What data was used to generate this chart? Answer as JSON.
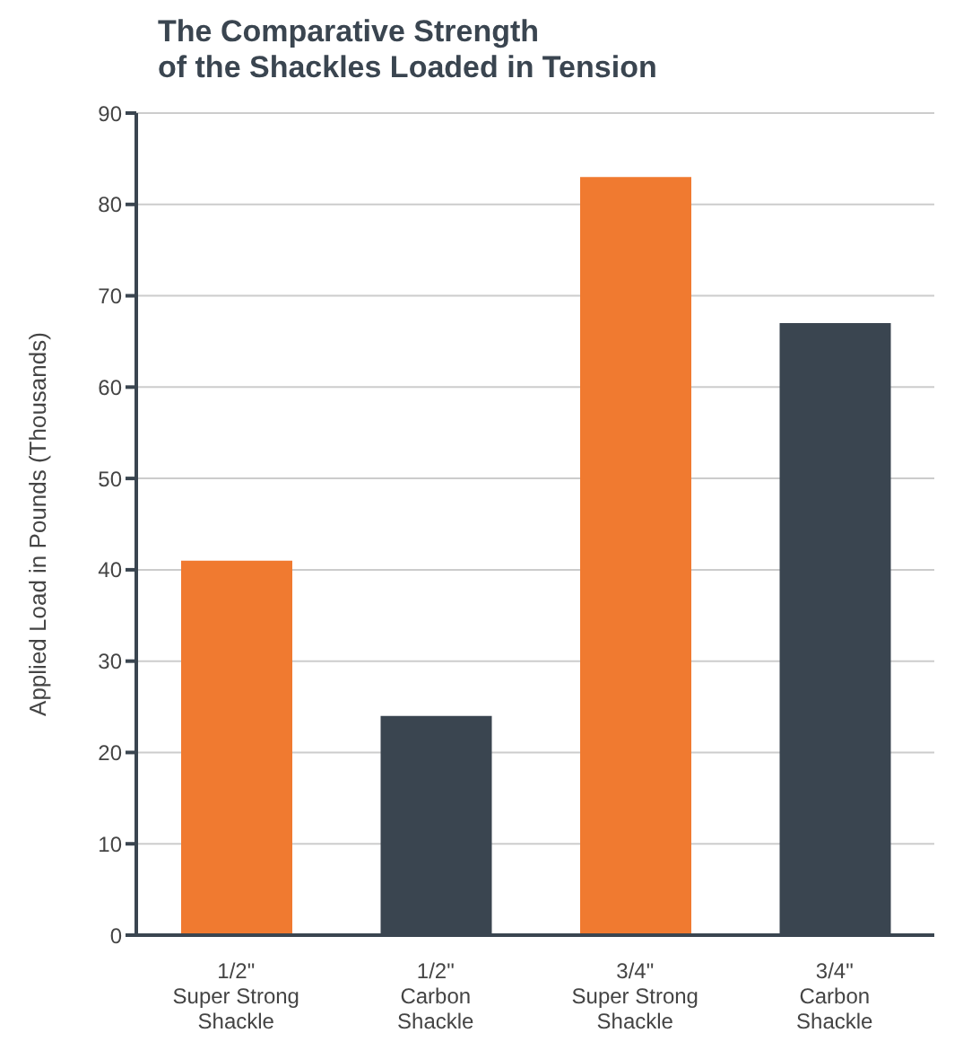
{
  "chart_data": {
    "type": "bar",
    "title": "The Comparative Strength\nof the Shackles Loaded in Tension",
    "ylabel": "Applied Load in Pounds (Thousands)",
    "categories": [
      "1/2\"\nSuper Strong\nShackle",
      "1/2\"\nCarbon\nShackle",
      "3/4\"\nSuper Strong\nShackle",
      "3/4\"\nCarbon\nShackle"
    ],
    "values": [
      41,
      24,
      83,
      67
    ],
    "colors": [
      "#f07a30",
      "#3a4550",
      "#f07a30",
      "#3a4550"
    ],
    "ylim": [
      0,
      90
    ],
    "yticks": [
      0,
      10,
      20,
      30,
      40,
      50,
      60,
      70,
      80,
      90
    ],
    "grid": "y"
  }
}
